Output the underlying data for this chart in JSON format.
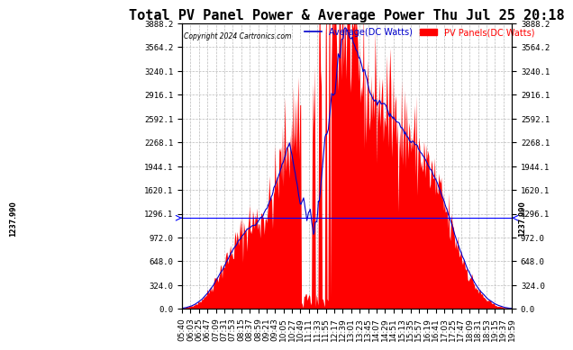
{
  "title": "Total PV Panel Power & Average Power Thu Jul 25 20:18",
  "copyright": "Copyright 2024 Cartronics.com",
  "legend_avg": "Average(DC Watts)",
  "legend_pv": "PV Panels(DC Watts)",
  "ymin": 0.0,
  "ymax": 3888.2,
  "yticks": [
    0.0,
    324.0,
    648.0,
    972.0,
    1296.1,
    1620.1,
    1944.1,
    2268.1,
    2592.1,
    2916.1,
    3240.1,
    3564.2,
    3888.2
  ],
  "hline_value": 1237.99,
  "hline_label": "1237.990",
  "bg_color": "#ffffff",
  "fill_color": "#ff0000",
  "avg_color": "#0000cc",
  "grid_color": "#bbbbbb",
  "title_fontsize": 11,
  "tick_fontsize": 6.5,
  "x_labels": [
    "05:40",
    "06:03",
    "06:25",
    "06:47",
    "07:09",
    "07:31",
    "07:53",
    "08:15",
    "08:37",
    "08:59",
    "09:21",
    "09:43",
    "10:05",
    "10:27",
    "10:49",
    "11:11",
    "11:33",
    "11:55",
    "12:17",
    "12:39",
    "13:01",
    "13:23",
    "13:45",
    "14:07",
    "14:29",
    "14:51",
    "15:13",
    "15:35",
    "15:57",
    "16:19",
    "16:41",
    "17:03",
    "17:25",
    "17:47",
    "18:09",
    "18:31",
    "18:53",
    "19:15",
    "19:37",
    "19:59"
  ]
}
